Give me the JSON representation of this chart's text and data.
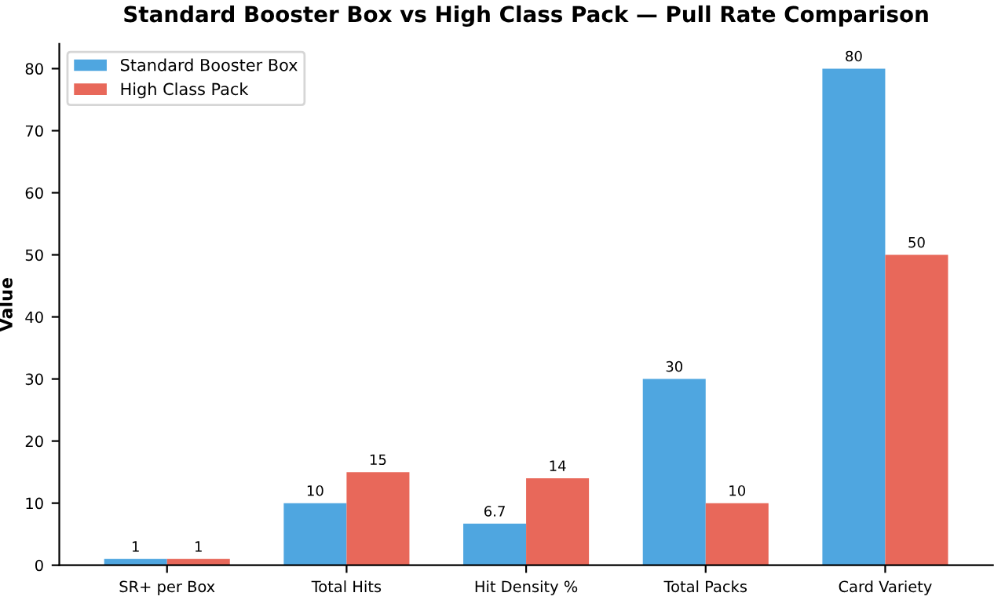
{
  "chart_data": {
    "type": "bar",
    "title": "Standard Booster Box vs High Class Pack — Pull Rate Comparison",
    "ylabel": "Value",
    "categories": [
      "SR+ per Box",
      "Total Hits",
      "Hit Density %",
      "Total Packs",
      "Card Variety"
    ],
    "series": [
      {
        "name": "Standard Booster Box",
        "color": "#4fa6e0",
        "values": [
          1,
          10,
          6.7,
          30,
          80
        ]
      },
      {
        "name": "High Class Pack",
        "color": "#e8685a",
        "values": [
          1,
          15,
          14,
          10,
          50
        ]
      }
    ],
    "ylim": [
      0,
      84
    ],
    "yticks": [
      0,
      10,
      20,
      30,
      40,
      50,
      60,
      70,
      80
    ],
    "grid": false,
    "legend": "top left",
    "data_labels": true
  }
}
